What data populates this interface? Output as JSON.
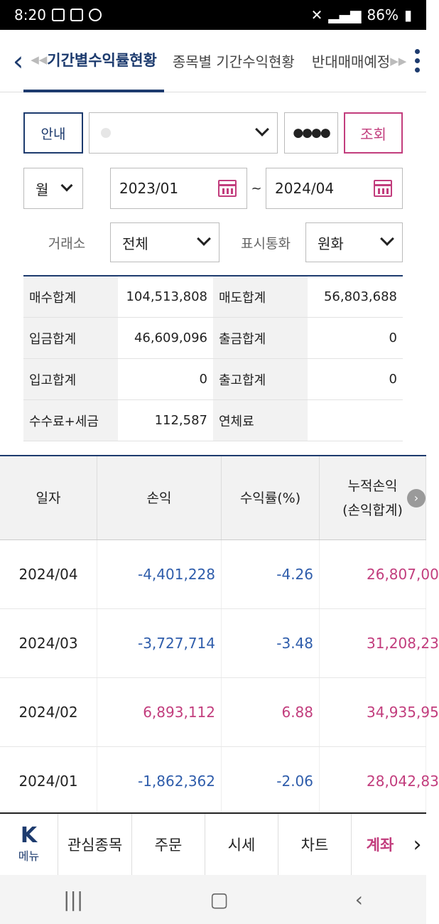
{
  "status": {
    "time": "8:20",
    "battery": "86%"
  },
  "tabs": [
    {
      "label": "기간별수익률현황",
      "active": true
    },
    {
      "label": "종목별 기간수익현황"
    },
    {
      "label": "반대매매예정"
    }
  ],
  "controls": {
    "guide_label": "안내",
    "password_mask": "●●●●",
    "query_label": "조회",
    "period_unit": "월",
    "date_from": "2023/01",
    "date_sep": "~",
    "date_to": "2024/04",
    "exchange_label": "거래소",
    "exchange_value": "전체",
    "currency_label": "표시통화",
    "currency_value": "원화"
  },
  "summary": [
    {
      "l1": "매수합계",
      "v1": "104,513,808",
      "l2": "매도합계",
      "v2": "56,803,688"
    },
    {
      "l1": "입금합계",
      "v1": "46,609,096",
      "l2": "출금합계",
      "v2": "0"
    },
    {
      "l1": "입고합계",
      "v1": "0",
      "l2": "출고합계",
      "v2": "0"
    },
    {
      "l1": "수수료+세금",
      "v1": "112,587",
      "l2": "연체료",
      "v2": ""
    }
  ],
  "table": {
    "headers": [
      "일자",
      "손익",
      "수익률(%)",
      "누적손익",
      "(손익합계)"
    ],
    "rows": [
      {
        "date": "2024/04",
        "pl": "-4,401,228",
        "rate": "-4.26",
        "cum": "26,807,00"
      },
      {
        "date": "2024/03",
        "pl": "-3,727,714",
        "rate": "-3.48",
        "cum": "31,208,23"
      },
      {
        "date": "2024/02",
        "pl": "6,893,112",
        "rate": "6.88",
        "cum": "34,935,95"
      },
      {
        "date": "2024/01",
        "pl": "-1,862,362",
        "rate": "-2.06",
        "cum": "28,042,83"
      }
    ]
  },
  "bottom_nav": {
    "menu_label": "메뉴",
    "items": [
      "관심종목",
      "주문",
      "시세",
      "차트",
      "계좌"
    ]
  },
  "colors": {
    "navy": "#1d3b6e",
    "pink": "#c23d7d",
    "blue": "#2f5dab"
  }
}
